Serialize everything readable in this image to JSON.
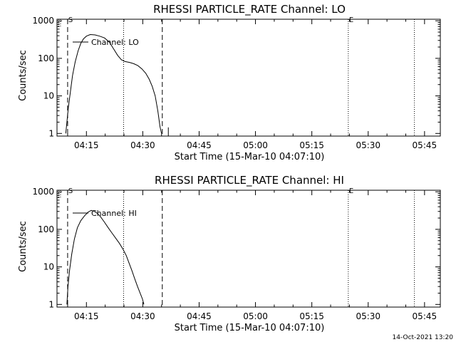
{
  "footer_timestamp": "14-Oct-2021 13:20",
  "chart_data": [
    {
      "type": "line",
      "title": "RHESSI PARTICLE_RATE Channel: LO",
      "xlabel": "Start Time (15-Mar-10 04:07:10)",
      "ylabel": "Counts/sec",
      "x_tick_labels": [
        "04:15",
        "04:30",
        "04:45",
        "05:00",
        "05:15",
        "05:30",
        "05:45"
      ],
      "x_tick_minutes": [
        15,
        30,
        45,
        60,
        75,
        90,
        105
      ],
      "y_tick_labels": [
        "1",
        "10",
        "100",
        "1000"
      ],
      "y_tick_values": [
        1,
        10,
        100,
        1000
      ],
      "y_scale": "log",
      "ylim": [
        0.85,
        1100
      ],
      "xlim_minutes": [
        7.17,
        109.2
      ],
      "start_marker_label": "S",
      "end_marker_label": "E",
      "dashed_markers_minutes": [
        10.0,
        35.2
      ],
      "dotted_markers_minutes": [
        24.9,
        84.7,
        102.3
      ],
      "corner_markers_minutes": [
        7.6,
        8.1
      ],
      "legend": "Channel: LO",
      "legend_position": "top-left",
      "series": [
        {
          "name": "Channel: LO",
          "points": [
            [
              9.5,
              1
            ],
            [
              9.8,
              2
            ],
            [
              10.2,
              5
            ],
            [
              10.7,
              12
            ],
            [
              11.3,
              35
            ],
            [
              12,
              80
            ],
            [
              12.8,
              160
            ],
            [
              13.5,
              250
            ],
            [
              14.2,
              330
            ],
            [
              15,
              390
            ],
            [
              16,
              430
            ],
            [
              17.3,
              420
            ],
            [
              18.5,
              390
            ],
            [
              19.8,
              350
            ],
            [
              21.1,
              270
            ],
            [
              22.2,
              180
            ],
            [
              23.3,
              120
            ],
            [
              24.3,
              92
            ],
            [
              25.3,
              82
            ],
            [
              26.5,
              78
            ],
            [
              27.6,
              72
            ],
            [
              28.7,
              64
            ],
            [
              29.8,
              52
            ],
            [
              30.8,
              40
            ],
            [
              31.7,
              28
            ],
            [
              32.5,
              18
            ],
            [
              33.3,
              10
            ],
            [
              34,
              4
            ],
            [
              34.6,
              1.5
            ],
            [
              35,
              1
            ]
          ],
          "spikes": [
            [
              36.8,
              1.45
            ]
          ]
        }
      ]
    },
    {
      "type": "line",
      "title": "RHESSI PARTICLE_RATE Channel: HI",
      "xlabel": "Start Time (15-Mar-10 04:07:10)",
      "ylabel": "Counts/sec",
      "x_tick_labels": [
        "04:15",
        "04:30",
        "04:45",
        "05:00",
        "05:15",
        "05:30",
        "05:45"
      ],
      "x_tick_minutes": [
        15,
        30,
        45,
        60,
        75,
        90,
        105
      ],
      "y_tick_labels": [
        "1",
        "10",
        "100",
        "1000"
      ],
      "y_tick_values": [
        1,
        10,
        100,
        1000
      ],
      "y_scale": "log",
      "ylim": [
        0.85,
        1100
      ],
      "xlim_minutes": [
        7.17,
        109.2
      ],
      "start_marker_label": "S",
      "end_marker_label": "E",
      "dashed_markers_minutes": [
        10.0,
        35.2
      ],
      "dotted_markers_minutes": [
        24.9,
        84.7,
        102.3
      ],
      "corner_markers_minutes": [
        7.6,
        8.1
      ],
      "legend": "Channel: HI",
      "legend_position": "top-left",
      "series": [
        {
          "name": "Channel: HI",
          "points": [
            [
              9.8,
              1
            ],
            [
              10.1,
              3
            ],
            [
              10.5,
              8
            ],
            [
              11.1,
              22
            ],
            [
              11.8,
              55
            ],
            [
              12.6,
              110
            ],
            [
              13.5,
              170
            ],
            [
              14.5,
              230
            ],
            [
              15.5,
              290
            ],
            [
              16.3,
              320
            ],
            [
              17.1,
              300
            ],
            [
              17.8,
              270
            ],
            [
              18.7,
              220
            ],
            [
              19.7,
              160
            ],
            [
              20.8,
              110
            ],
            [
              21.8,
              80
            ],
            [
              22.8,
              58
            ],
            [
              23.8,
              42
            ],
            [
              24.7,
              30
            ],
            [
              25.6,
              20
            ],
            [
              26.3,
              13
            ],
            [
              27.1,
              8
            ],
            [
              27.8,
              5
            ],
            [
              28.6,
              3
            ],
            [
              29.3,
              2
            ],
            [
              29.9,
              1.4
            ],
            [
              30.3,
              1
            ]
          ],
          "spikes": []
        }
      ]
    }
  ]
}
